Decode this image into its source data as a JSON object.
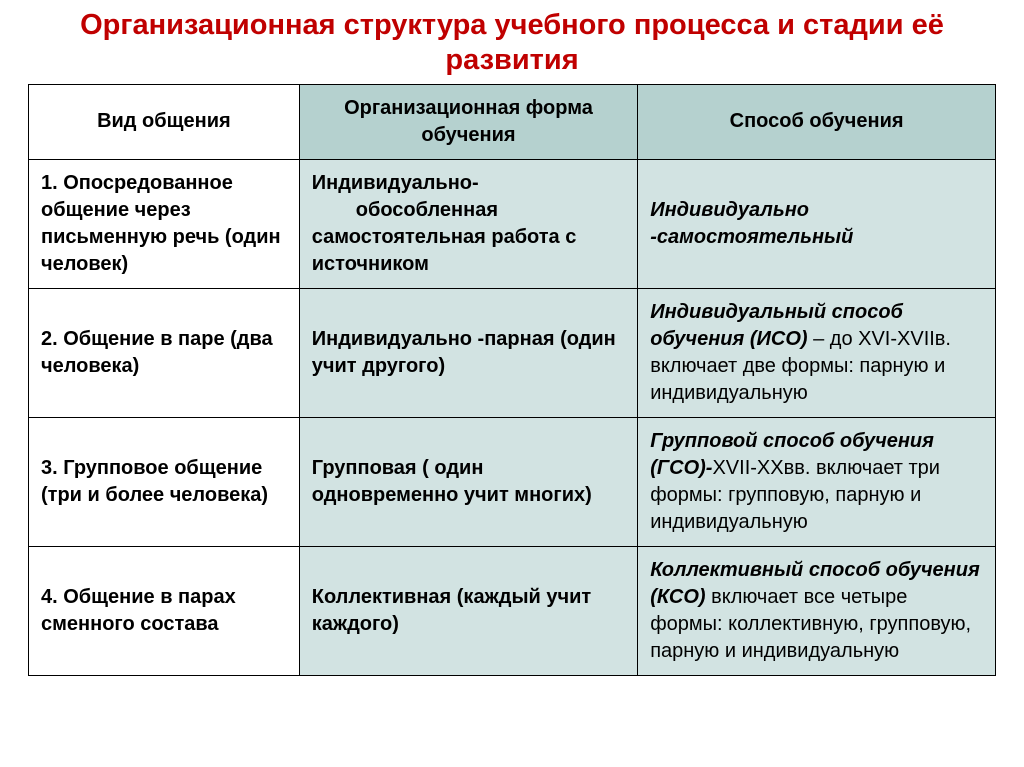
{
  "title_color": "#c00000",
  "header_bg": "#b5d1cf",
  "cell_tint_bg": "#d2e3e2",
  "title": "Организационная структура учебного процесса и стадии её развития",
  "headers": {
    "col1": "Вид общения",
    "col2": "Организационная форма обучения",
    "col3": "Способ обучения"
  },
  "rows": [
    {
      "c1": "1. Опосредованное общение через письменную речь (один человек)",
      "c2_a": "Индивидуально-",
      "c2_b": "обособленная самостоятельная работа с источником",
      "c3_bold": "Индивидуально -самостоятельный",
      "c3_rest": ""
    },
    {
      "c1": "2. Общение в паре (два человека)",
      "c2_a": "Индивидуально -парная (один учит другого)",
      "c2_b": "",
      "c3_bold": "Индивидуальный способ обучения  (ИСО)",
      "c3_rest": " – до XVI-XVIIв. включает две формы: парную и индивидуальную"
    },
    {
      "c1": "3. Групповое общение (три и более человека)",
      "c2_a": "Групповая ( один одновременно учит многих)",
      "c2_b": "",
      "c3_bold": "Групповой способ обучения (ГСО)-",
      "c3_rest": "XVII-XXвв. включает три формы: групповую, парную и индивидуальную"
    },
    {
      "c1": "4. Общение в парах сменного состава",
      "c2_a": "Коллективная (каждый учит каждого)",
      "c2_b": "",
      "c3_bold": "Коллективный способ обучения (КСО)",
      "c3_rest": " включает все четыре формы: коллективную, групповую, парную и индивидуальную"
    }
  ]
}
